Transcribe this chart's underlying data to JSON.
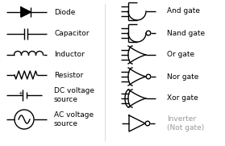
{
  "bg_color": "#ffffff",
  "line_color": "#000000",
  "text_color": "#000000",
  "gray_text_color": "#999999",
  "left_labels": [
    "Diode",
    "Capacitor",
    "Inductor",
    "Resistor",
    "DC voltage\nsource",
    "AC voltage\nsource"
  ],
  "right_labels": [
    "And gate",
    "Nand gate",
    "Or gate",
    "Nor gate",
    "Xor gate",
    "Inverter\n(Not gate)"
  ],
  "font_size": 6.5,
  "lw": 1.0,
  "fig_w": 2.79,
  "fig_h": 1.81,
  "dpi": 100
}
